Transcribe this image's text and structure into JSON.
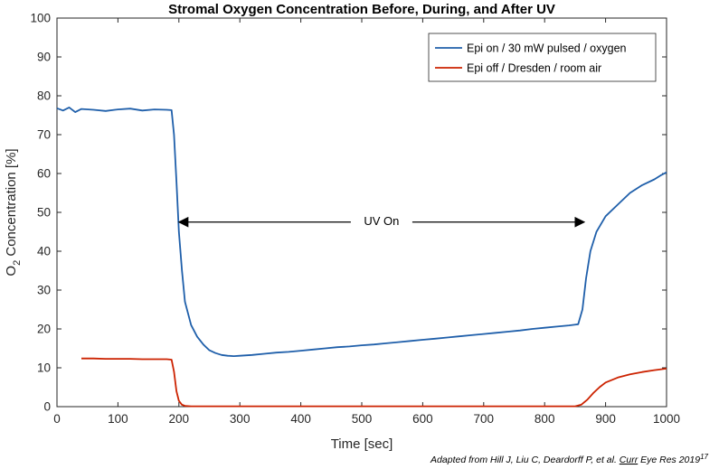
{
  "chart_data": {
    "type": "line",
    "title": "Stromal Oxygen Concentration Before, During, and After UV",
    "xlabel": "Time [sec]",
    "ylabel_main": "O",
    "ylabel_sub": "2",
    "ylabel_rest": " Concentration [%]",
    "xlim": [
      0,
      1000
    ],
    "ylim": [
      0,
      100
    ],
    "xticks": [
      0,
      100,
      200,
      300,
      400,
      500,
      600,
      700,
      800,
      900,
      1000
    ],
    "yticks": [
      0,
      10,
      20,
      30,
      40,
      50,
      60,
      70,
      80,
      90,
      100
    ],
    "grid": false,
    "legend_position": "top-right",
    "series": [
      {
        "name": "Epi on / 30 mW pulsed / oxygen",
        "color": "#1f5faa",
        "x": [
          0,
          10,
          20,
          30,
          40,
          60,
          80,
          100,
          120,
          140,
          160,
          180,
          188,
          192,
          196,
          200,
          205,
          210,
          220,
          230,
          240,
          250,
          260,
          270,
          280,
          290,
          300,
          320,
          340,
          360,
          380,
          400,
          420,
          440,
          460,
          480,
          500,
          520,
          540,
          560,
          580,
          600,
          620,
          640,
          660,
          680,
          700,
          720,
          740,
          760,
          780,
          800,
          820,
          840,
          855,
          862,
          868,
          875,
          885,
          900,
          920,
          940,
          960,
          980,
          990,
          1000
        ],
        "y": [
          76.8,
          76.2,
          77.0,
          75.8,
          76.6,
          76.4,
          76.1,
          76.5,
          76.7,
          76.2,
          76.5,
          76.4,
          76.3,
          70,
          58,
          45,
          35,
          27,
          21,
          18,
          16,
          14.5,
          13.8,
          13.3,
          13.1,
          13.0,
          13.1,
          13.3,
          13.6,
          13.9,
          14.1,
          14.4,
          14.7,
          15.0,
          15.3,
          15.5,
          15.8,
          16.0,
          16.3,
          16.6,
          16.9,
          17.2,
          17.5,
          17.8,
          18.1,
          18.4,
          18.7,
          19.0,
          19.3,
          19.6,
          20.0,
          20.3,
          20.6,
          20.9,
          21.2,
          25,
          33,
          40,
          45,
          49,
          52,
          55,
          57,
          58.5,
          59.5,
          60.3
        ]
      },
      {
        "name": "Epi off / Dresden / room air",
        "color": "#cc2200",
        "x": [
          40,
          60,
          80,
          100,
          120,
          140,
          160,
          180,
          188,
          192,
          196,
          200,
          205,
          210,
          220,
          300,
          400,
          500,
          600,
          700,
          800,
          850,
          860,
          870,
          880,
          890,
          900,
          920,
          940,
          960,
          980,
          1000
        ],
        "y": [
          12.4,
          12.4,
          12.3,
          12.3,
          12.3,
          12.2,
          12.2,
          12.2,
          12.1,
          9,
          4,
          1.5,
          0.5,
          0.2,
          0.1,
          0.1,
          0.1,
          0.1,
          0.1,
          0.1,
          0.1,
          0.1,
          0.5,
          1.8,
          3.5,
          5.0,
          6.2,
          7.5,
          8.3,
          8.9,
          9.4,
          9.8
        ]
      }
    ],
    "annotation": {
      "text": "UV On",
      "arrow_from_x": 200,
      "arrow_to_x": 865,
      "y": 47.5
    },
    "citation": {
      "text": "Adapted from Hill J, Liu C, Deardorff P, et al. ",
      "journal_a": "Curr",
      "journal_b": " Eye Res 2019",
      "superscript": "17"
    }
  }
}
